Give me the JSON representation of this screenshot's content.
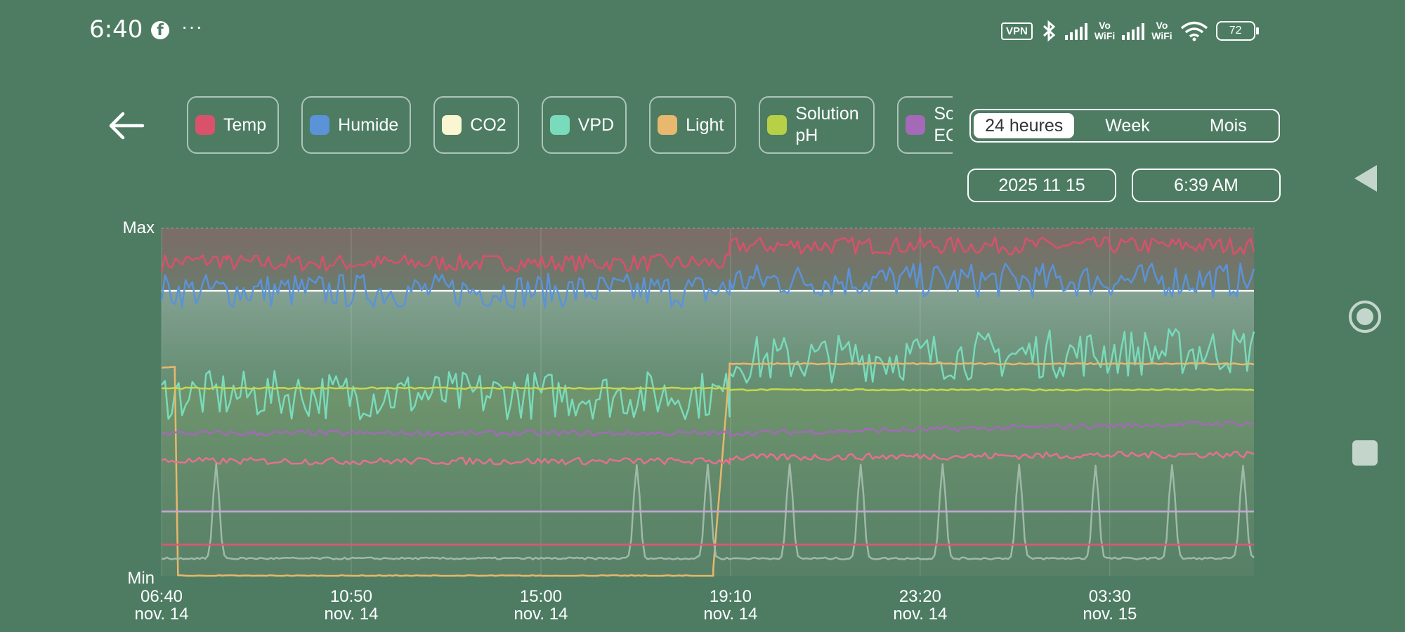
{
  "status_bar": {
    "time": "6:40",
    "app_icon": "facebook-icon",
    "more": "···",
    "vpn": "VPN",
    "vowifi_1": [
      "Vo",
      "WiFi"
    ],
    "vowifi_2": [
      "Vo",
      "WiFi"
    ],
    "battery": "72"
  },
  "sensors": [
    {
      "label": "Temp",
      "color": "#d9516a"
    },
    {
      "label": "Humide",
      "color": "#5b93d9"
    },
    {
      "label": "CO2",
      "color": "#fbf6d2"
    },
    {
      "label": "VPD",
      "color": "#79dbbb"
    },
    {
      "label": "Light",
      "color": "#e7b86d"
    },
    {
      "label": "Solution pH",
      "color": "#b8d046"
    },
    {
      "label": "Solution EC",
      "color": "#a46ab8"
    }
  ],
  "range_selector": {
    "options": [
      "24 heures",
      "Week",
      "Mois"
    ],
    "selected": "24 heures"
  },
  "date": "2025 11 15",
  "time_value": "6:39 AM",
  "chart_data": {
    "type": "line",
    "y_labels": {
      "max": "Max",
      "min": "Min"
    },
    "x_ticks": [
      {
        "time": "06:40",
        "date": "nov. 14"
      },
      {
        "time": "10:50",
        "date": "nov. 14"
      },
      {
        "time": "15:00",
        "date": "nov. 14"
      },
      {
        "time": "19:10",
        "date": "nov. 14"
      },
      {
        "time": "23:20",
        "date": "nov. 14"
      },
      {
        "time": "03:30",
        "date": "nov. 15"
      }
    ],
    "x_range_hours": [
      0,
      24
    ],
    "y_range": [
      0,
      1
    ],
    "series": [
      {
        "key": "temp",
        "color": "#d9516a",
        "segments": [
          [
            0,
            0.06,
            0.9,
            0.91
          ],
          [
            0.06,
            0.52,
            0.9,
            0.9
          ],
          [
            0.52,
            1.0,
            0.95,
            0.95
          ]
        ],
        "noise": 0.025
      },
      {
        "key": "humide",
        "color": "#5b93d9",
        "segments": [
          [
            0,
            0.52,
            0.82,
            0.82
          ],
          [
            0.52,
            1.0,
            0.85,
            0.85
          ]
        ],
        "noise": 0.05
      },
      {
        "key": "vpd",
        "color": "#79dbbb",
        "segments": [
          [
            0,
            0.52,
            0.52,
            0.52
          ],
          [
            0.52,
            1.0,
            0.62,
            0.65
          ]
        ],
        "noise": 0.07
      },
      {
        "key": "light",
        "color": "#e7b86d",
        "segments": [
          [
            0,
            0.012,
            0.6,
            0.6
          ],
          [
            0.012,
            0.015,
            0.6,
            0.01
          ],
          [
            0.015,
            0.505,
            0.0,
            0.0
          ],
          [
            0.505,
            0.52,
            0.02,
            0.6
          ],
          [
            0.52,
            1.0,
            0.61,
            0.61
          ]
        ],
        "noise": 0.002
      },
      {
        "key": "ph",
        "color": "#c7d74c",
        "segments": [
          [
            0,
            0.52,
            0.54,
            0.54
          ],
          [
            0.52,
            1.0,
            0.535,
            0.535
          ]
        ],
        "noise": 0.002
      },
      {
        "key": "ec",
        "color": "#a46ab8",
        "segments": [
          [
            0,
            0.52,
            0.41,
            0.41
          ],
          [
            0.52,
            1.0,
            0.41,
            0.44
          ]
        ],
        "noise": 0.008
      },
      {
        "key": "temp2",
        "color": "#e6708f",
        "segments": [
          [
            0,
            0.52,
            0.33,
            0.33
          ],
          [
            0.52,
            1.0,
            0.34,
            0.35
          ]
        ],
        "noise": 0.01
      },
      {
        "key": "co2_peaks",
        "color": "#9fb9a8",
        "baseline": 0.05,
        "peaks": [
          0.05,
          0.435,
          0.5,
          0.575,
          0.64,
          0.715,
          0.785,
          0.855,
          0.925,
          0.99
        ],
        "peak_height": 0.27
      },
      {
        "key": "ec_flat",
        "color": "#c8a6d8",
        "segments": [
          [
            0,
            1,
            0.185,
            0.185
          ]
        ],
        "noise": 0
      },
      {
        "key": "temp_flat",
        "color": "#e25474",
        "segments": [
          [
            0,
            1,
            0.09,
            0.09
          ]
        ],
        "noise": 0
      }
    ]
  }
}
